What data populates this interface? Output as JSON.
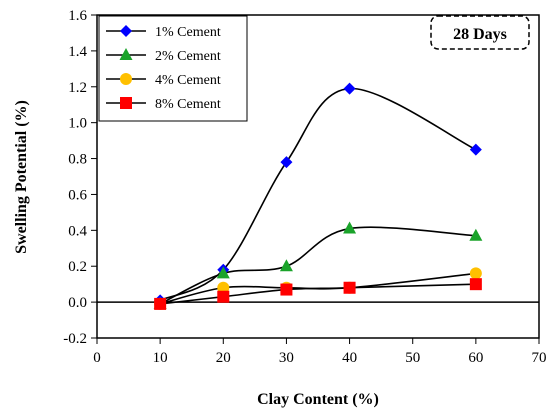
{
  "chart_data": {
    "type": "line",
    "xlabel": "Clay Content (%)",
    "ylabel": "Swelling Potential (%)",
    "xlim": [
      0,
      70
    ],
    "ylim": [
      -0.2,
      1.6
    ],
    "xticks": [
      0,
      10,
      20,
      30,
      40,
      50,
      60,
      70
    ],
    "yticks": [
      -0.2,
      0.0,
      0.2,
      0.4,
      0.6,
      0.8,
      1.0,
      1.2,
      1.4,
      1.6
    ],
    "ytick_labels": [
      "-0.2",
      "0.0",
      "0.2",
      "0.4",
      "0.6",
      "0.8",
      "1.0",
      "1.2",
      "1.4",
      "1.6"
    ],
    "grid": false,
    "legend_position": "top-left",
    "annotation": "28 Days",
    "series": [
      {
        "name": "1% Cement",
        "marker": "diamond",
        "color": "#0000ff",
        "x": [
          10,
          20,
          30,
          40,
          60
        ],
        "y": [
          0.01,
          0.18,
          0.78,
          1.19,
          0.85
        ]
      },
      {
        "name": "2% Cement",
        "marker": "triangle",
        "color": "#1aa32a",
        "x": [
          10,
          20,
          30,
          40,
          60
        ],
        "y": [
          -0.01,
          0.16,
          0.2,
          0.41,
          0.37
        ]
      },
      {
        "name": "4% Cement",
        "marker": "circle",
        "color": "#ffc000",
        "x": [
          10,
          20,
          30,
          40,
          60
        ],
        "y": [
          -0.01,
          0.08,
          0.08,
          0.08,
          0.16
        ]
      },
      {
        "name": "8% Cement",
        "marker": "square",
        "color": "#ff0000",
        "x": [
          10,
          20,
          30,
          40,
          60
        ],
        "y": [
          -0.01,
          0.03,
          0.07,
          0.08,
          0.1
        ]
      }
    ]
  }
}
